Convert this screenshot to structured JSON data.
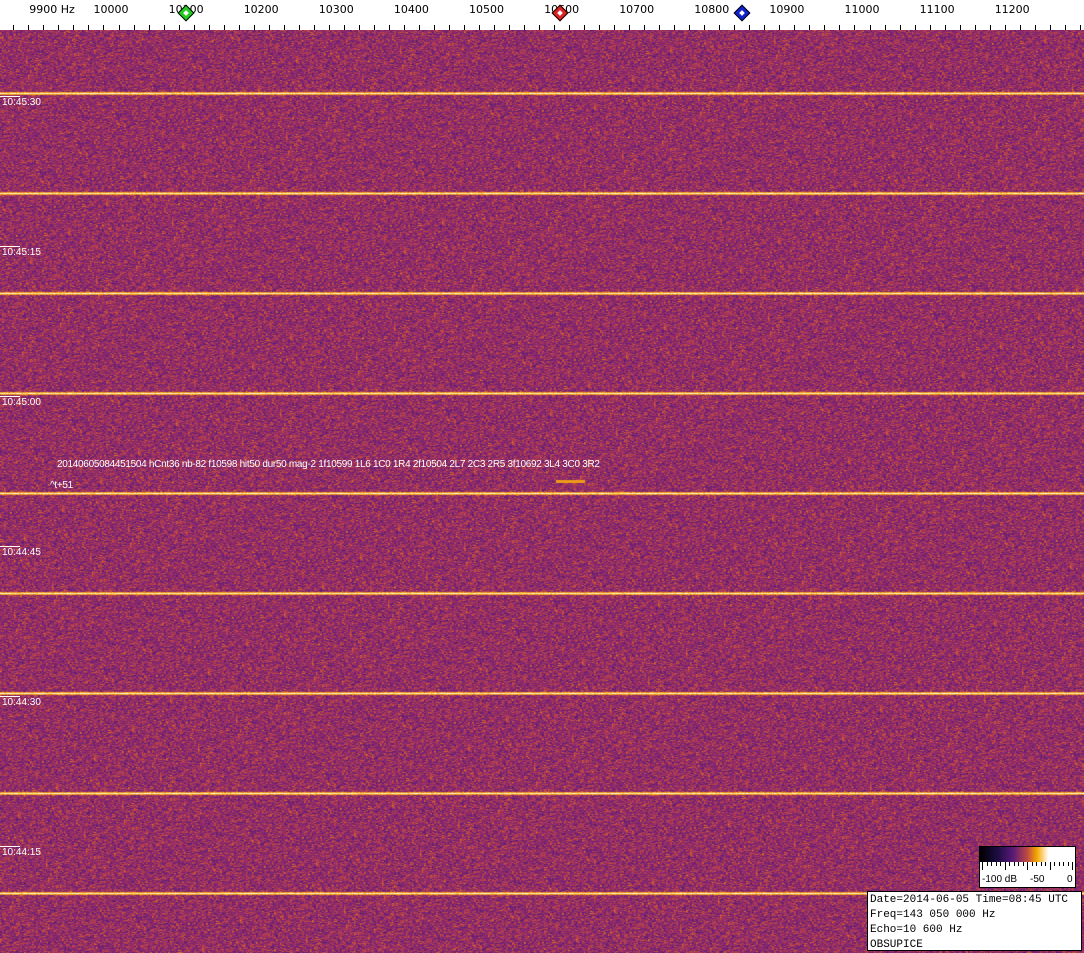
{
  "axis": {
    "unit_label": "9900 Hz",
    "labels": [
      "10000",
      "10100",
      "10200",
      "10300",
      "10400",
      "10500",
      "10600",
      "10700",
      "10800",
      "10900",
      "11000",
      "11100",
      "11200"
    ]
  },
  "markers": [
    {
      "name": "green",
      "freq_hz": 10100,
      "color": "#22cc22"
    },
    {
      "name": "red",
      "freq_hz": 10598,
      "color": "#dd2222"
    },
    {
      "name": "blue",
      "freq_hz": 10840,
      "color": "#1122cc"
    }
  ],
  "time_labels": [
    "10:45:30",
    "10:45:15",
    "10:45:00",
    "10:44:45",
    "10:44:30",
    "10:44:15"
  ],
  "annotation": {
    "detection": "20140605084451504 hCnt36 nb-82 f10598 hit50 dur50 mag-2 1f10599 1L6 1C0 1R4 2f10504 2L7 2C3 2R5 3f10692 3L4 3C0 3R2",
    "offset": "^t+51"
  },
  "colorbar": {
    "labels": [
      "-100 dB",
      "-50",
      "0"
    ]
  },
  "info": {
    "date_time": "Date=2014-06-05 Time=08:45 UTC",
    "freq": "Freq=143 050 000 Hz",
    "echo": "Echo=10 600 Hz",
    "station": "OBSUPICE"
  }
}
